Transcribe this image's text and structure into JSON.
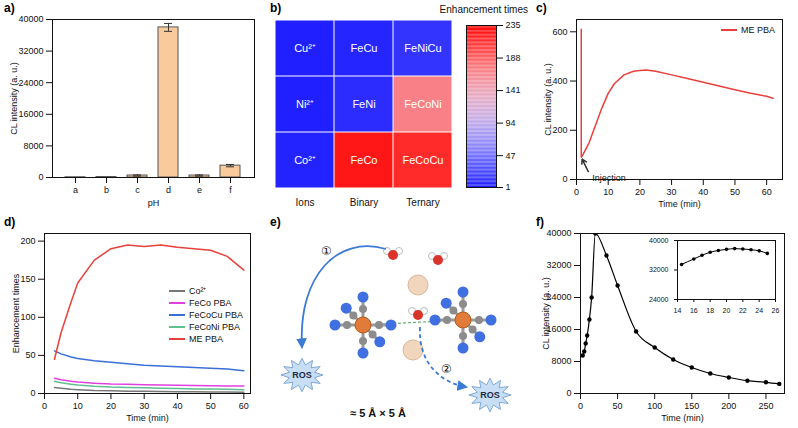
{
  "chart_data": [
    {
      "panel": "a)",
      "type": "bar",
      "xlabel": "pH",
      "ylabel": "CL intensity (a. u.)",
      "categories": [
        "a",
        "b",
        "c",
        "d",
        "e",
        "f"
      ],
      "values": [
        60,
        120,
        500,
        38000,
        500,
        3000
      ],
      "errors": [
        0,
        0,
        150,
        1000,
        150,
        300
      ],
      "color": "#f9cb9c",
      "ylim": [
        0,
        40000
      ],
      "yticks": [
        0,
        8000,
        16000,
        24000,
        32000,
        40000
      ]
    },
    {
      "panel": "b)",
      "type": "heatmap",
      "columns": [
        "Ions",
        "Binary",
        "Ternary"
      ],
      "cell_labels": [
        [
          "Cu²⁺",
          "FeCu",
          "FeNiCu"
        ],
        [
          "Ni²⁺",
          "FeNi",
          "FeCoNi"
        ],
        [
          "Co²⁺",
          "FeCo",
          "FeCoCu"
        ]
      ],
      "values": [
        [
          1,
          4,
          12
        ],
        [
          1,
          8,
          170
        ],
        [
          3,
          225,
          215
        ]
      ],
      "colorbar": {
        "label": "Enhancement times",
        "lim": [
          1,
          235
        ],
        "ticks": [
          1,
          47,
          94,
          141,
          188,
          235
        ],
        "colors": [
          "#1f1fff",
          "#ffffff",
          "#ff0000"
        ]
      }
    },
    {
      "panel": "c)",
      "type": "line",
      "xlabel": "Time (min)",
      "ylabel": "CL intensity (a. u.)",
      "x": [
        1.5,
        1.5,
        2,
        4,
        6,
        8,
        10,
        12,
        15,
        18,
        20,
        22,
        25,
        30,
        35,
        40,
        45,
        50,
        55,
        60,
        62
      ],
      "series": [
        {
          "name": "ME PBA",
          "color": "#e8413c",
          "values": [
            610,
            90,
            100,
            150,
            220,
            290,
            350,
            390,
            425,
            440,
            443,
            445,
            440,
            425,
            410,
            395,
            380,
            365,
            350,
            338,
            330
          ]
        }
      ],
      "annotations": [
        {
          "text": "Injection",
          "x": 4,
          "y": 25,
          "arrow_to": [
            1.5,
            90
          ]
        }
      ],
      "legend": "top-right",
      "xlim": [
        0,
        65
      ],
      "xticks": [
        0,
        10,
        20,
        30,
        40,
        50,
        60
      ],
      "ylim": [
        0,
        650
      ],
      "yticks": [
        0,
        200,
        400,
        600
      ]
    },
    {
      "panel": "d)",
      "type": "line",
      "xlabel": "Time (min)",
      "ylabel": "Enhancement times",
      "x": [
        3,
        5,
        8,
        10,
        15,
        20,
        25,
        30,
        35,
        40,
        45,
        50,
        55,
        60
      ],
      "series": [
        {
          "name": "Co²⁺",
          "color": "#777777",
          "values": [
            8,
            7,
            5.5,
            5,
            4,
            3.5,
            3,
            2.8,
            2.5,
            2.3,
            2.2,
            2,
            2,
            1.8
          ]
        },
        {
          "name": "FeCo PBA",
          "color": "#e040e0",
          "values": [
            20,
            18,
            16,
            15,
            13.5,
            12.5,
            12,
            11.5,
            11,
            10.8,
            10.5,
            10.2,
            10,
            9.8
          ]
        },
        {
          "name": "FeCoCu PBA",
          "color": "#3a6fd8",
          "values": [
            56,
            52,
            48,
            46,
            43,
            41,
            39,
            37,
            36,
            35,
            34,
            33,
            32,
            30
          ]
        },
        {
          "name": "FeCoNi PBA",
          "color": "#5fbf8f",
          "values": [
            16,
            14,
            12,
            11,
            9.5,
            8.5,
            8,
            7.5,
            7,
            6.5,
            6,
            5.8,
            5.5,
            5
          ]
        },
        {
          "name": "ME PBA",
          "color": "#e8413c",
          "values": [
            45,
            80,
            120,
            145,
            175,
            190,
            195,
            193,
            195,
            192,
            190,
            188,
            180,
            162
          ]
        }
      ],
      "legend": "right",
      "xlim": [
        0,
        62
      ],
      "xticks": [
        0,
        10,
        20,
        30,
        40,
        50,
        60
      ],
      "ylim": [
        0,
        210
      ],
      "yticks": [
        0,
        50,
        100,
        150,
        200
      ]
    },
    {
      "panel": "e)",
      "type": "diagram",
      "ros_labels": [
        "ROS",
        "ROS"
      ],
      "pathway_labels": [
        "①",
        "②"
      ],
      "size_label": "≈ 5 Å × 5 Å"
    },
    {
      "panel": "f)",
      "type": "line",
      "xlabel": "Time (min)",
      "ylabel": "CL intensity (a. u.)",
      "marker": "circle",
      "color": "#000000",
      "x": [
        3,
        5,
        7,
        9,
        12,
        15,
        20,
        35,
        50,
        75,
        100,
        125,
        150,
        175,
        200,
        225,
        250,
        268
      ],
      "values": [
        9500,
        10500,
        12500,
        14500,
        18500,
        24000,
        40000,
        34500,
        27000,
        15500,
        11500,
        8500,
        6500,
        5000,
        4000,
        3200,
        2800,
        2400
      ],
      "xlim": [
        0,
        275
      ],
      "xticks": [
        0,
        50,
        100,
        150,
        200,
        250
      ],
      "ylim": [
        0,
        40000
      ],
      "yticks": [
        0,
        8000,
        16000,
        24000,
        32000,
        40000
      ],
      "inset": {
        "x": [
          14.5,
          16,
          17,
          18,
          19,
          20,
          21,
          22,
          23,
          24,
          25
        ],
        "values": [
          33500,
          35000,
          36000,
          36800,
          37300,
          37600,
          37800,
          37700,
          37500,
          37200,
          36500
        ],
        "xlim": [
          14,
          26
        ],
        "xticks": [
          14,
          16,
          18,
          20,
          22,
          24,
          26
        ],
        "ylim": [
          24000,
          40000
        ],
        "yticks": [
          24000,
          32000,
          40000
        ]
      }
    }
  ]
}
